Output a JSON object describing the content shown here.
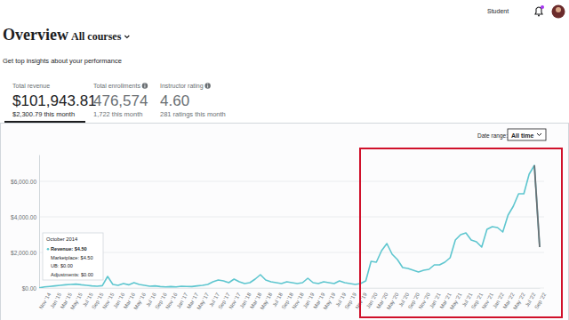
{
  "header": {
    "user_role": "Student"
  },
  "page": {
    "title": "Overview",
    "course_filter": "All courses",
    "subtitle": "Get top insights about your performance"
  },
  "stats": [
    {
      "label": "Total revenue",
      "value": "$101,943.81",
      "sub": "$2,300.79 this month"
    },
    {
      "label": "Total enrollments",
      "value": "476,574",
      "sub": "1,722 this month"
    },
    {
      "label": "Instructor rating",
      "value": "4.60",
      "sub": "281 ratings this month"
    }
  ],
  "date_range": {
    "label": "Date range:",
    "value": "All time"
  },
  "tooltip": {
    "title": "October 2014",
    "rows": [
      "Revenue: $4.50",
      "Marketplace: $4.50",
      "UB: $0.00",
      "Adjustments: $0.00"
    ]
  },
  "chart_data": {
    "type": "line",
    "color": "#5ec6cf",
    "grid": true,
    "categories": [
      null,
      "Nov '14",
      null,
      "Jan '15",
      null,
      "Mar '15",
      null,
      "May '15",
      null,
      "Jul '15",
      null,
      "Sep '15",
      null,
      "Nov '15",
      null,
      "Jan '16",
      null,
      "Mar '16",
      null,
      "May '16",
      null,
      "Jul '16",
      null,
      "Sep '16",
      null,
      "Nov '16",
      null,
      "Jan '17",
      null,
      "Mar '17",
      null,
      "May '17",
      null,
      "Jul '17",
      null,
      "Sep '17",
      null,
      "Nov '17",
      null,
      "Jan '18",
      null,
      "Mar '18",
      null,
      "May '18",
      null,
      "Jul '18",
      null,
      "Sep '18",
      null,
      "Nov '18",
      null,
      "Jan '19",
      null,
      "Mar '19",
      null,
      "May '19",
      null,
      "Jul '19",
      null,
      "Sep '19",
      null,
      "Nov '19",
      null,
      "Jan '20",
      null,
      "Mar '20",
      null,
      "May '20",
      null,
      "Jul '20",
      null,
      "Sep '20",
      null,
      "Nov '20",
      null,
      "Jan '21",
      null,
      "Mar '21",
      null,
      "May '21",
      null,
      "Jul '21",
      null,
      "Sep '21",
      null,
      "Nov '21",
      null,
      "Jan '22",
      null,
      "Mar '22",
      null,
      "May '22",
      null,
      "Jul '22",
      null,
      "Sep '22"
    ],
    "values": [
      4.5,
      60,
      90,
      120,
      150,
      180,
      200,
      220,
      180,
      150,
      120,
      100,
      130,
      650,
      200,
      150,
      250,
      180,
      300,
      200,
      150,
      100,
      120,
      80,
      60,
      80,
      60,
      100,
      90,
      80,
      120,
      150,
      200,
      350,
      450,
      400,
      300,
      500,
      350,
      250,
      300,
      500,
      750,
      450,
      350,
      300,
      250,
      350,
      300,
      250,
      300,
      550,
      300,
      250,
      350,
      300,
      250,
      400,
      300,
      250,
      200,
      250,
      400,
      1500,
      1450,
      2100,
      2500,
      1900,
      1600,
      1150,
      1100,
      1000,
      900,
      1000,
      1050,
      1300,
      1300,
      1450,
      1700,
      2700,
      3000,
      3100,
      2700,
      2600,
      2300,
      3300,
      3450,
      3400,
      3150,
      4100,
      4600,
      5300,
      5300,
      6400,
      6900,
      2300
    ],
    "ylim": [
      0,
      7500
    ],
    "yticks": [
      {
        "value": 0,
        "label": "$0.00"
      },
      {
        "value": 2000,
        "label": "$2,000.00"
      },
      {
        "value": 4000,
        "label": "$4,000.00"
      },
      {
        "value": 6000,
        "label": "$6,000.00"
      }
    ]
  }
}
